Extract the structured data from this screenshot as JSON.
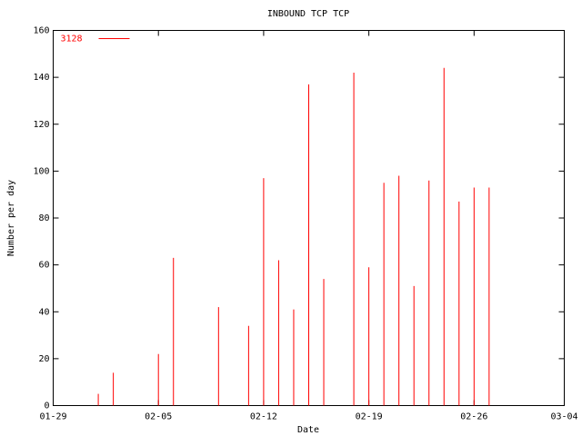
{
  "chart_data": {
    "type": "impulse",
    "title": "INBOUND TCP TCP",
    "xlabel": "Date",
    "ylabel": "Number per day",
    "legend": "top-left",
    "series": [
      {
        "name": "3128",
        "color": "#ff0000",
        "x": [
          "02-01",
          "02-02",
          "02-05",
          "02-06",
          "02-09",
          "02-11",
          "02-12",
          "02-13",
          "02-14",
          "02-15",
          "02-16",
          "02-18",
          "02-19",
          "02-20",
          "02-21",
          "02-22",
          "02-23",
          "02-24",
          "02-25",
          "02-26",
          "02-27"
        ],
        "values": [
          5,
          14,
          22,
          63,
          42,
          34,
          97,
          62,
          41,
          137,
          54,
          142,
          59,
          95,
          98,
          51,
          96,
          144,
          87,
          93,
          93
        ]
      }
    ],
    "xlim": [
      "01-29",
      "03-04"
    ],
    "xticks": [
      "01-29",
      "02-05",
      "02-12",
      "02-19",
      "02-26",
      "03-04"
    ],
    "ylim": [
      0,
      160
    ],
    "yticks": [
      0,
      20,
      40,
      60,
      80,
      100,
      120,
      140,
      160
    ]
  }
}
